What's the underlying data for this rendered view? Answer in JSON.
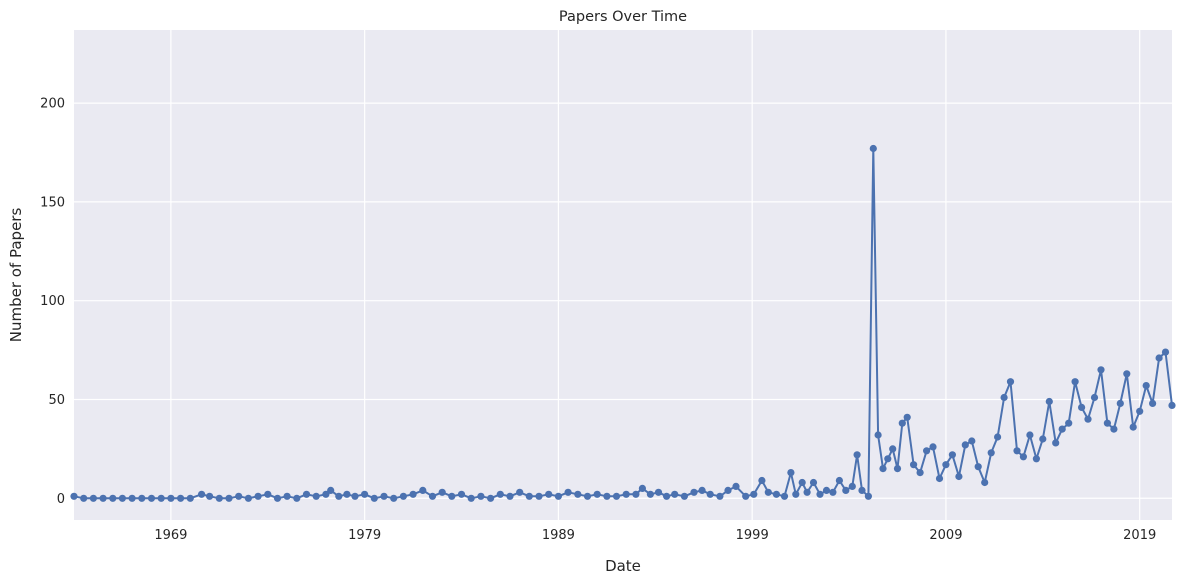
{
  "chart_data": {
    "type": "line",
    "title": "Papers Over Time",
    "xlabel": "Date",
    "ylabel": "Number of Papers",
    "xlim": [
      "1964-01",
      "2020-09"
    ],
    "ylim": [
      -11,
      237
    ],
    "x_ticks": [
      "1969",
      "1979",
      "1989",
      "1999",
      "2009",
      "2019"
    ],
    "y_ticks": [
      0,
      50,
      100,
      150,
      200
    ],
    "grid": true,
    "legend": "none",
    "colors": {
      "series": "#4c72b0",
      "plot_background": "#eaeaf2",
      "grid": "#ffffff",
      "text": "#262626"
    },
    "series": [
      {
        "points": [
          [
            "1964-01",
            1
          ],
          [
            "1964-07",
            0
          ],
          [
            "1965-01",
            0
          ],
          [
            "1965-07",
            0
          ],
          [
            "1966-01",
            0
          ],
          [
            "1966-07",
            0
          ],
          [
            "1967-01",
            0
          ],
          [
            "1967-07",
            0
          ],
          [
            "1968-01",
            0
          ],
          [
            "1968-07",
            0
          ],
          [
            "1969-01",
            0
          ],
          [
            "1969-07",
            0
          ],
          [
            "1970-01",
            0
          ],
          [
            "1970-08",
            2
          ],
          [
            "1971-01",
            1
          ],
          [
            "1971-07",
            0
          ],
          [
            "1972-01",
            0
          ],
          [
            "1972-07",
            1
          ],
          [
            "1973-01",
            0
          ],
          [
            "1973-07",
            1
          ],
          [
            "1974-01",
            2
          ],
          [
            "1974-07",
            0
          ],
          [
            "1975-01",
            1
          ],
          [
            "1975-07",
            0
          ],
          [
            "1976-01",
            2
          ],
          [
            "1976-07",
            1
          ],
          [
            "1977-01",
            2
          ],
          [
            "1977-04",
            4
          ],
          [
            "1977-09",
            1
          ],
          [
            "1978-02",
            2
          ],
          [
            "1978-07",
            1
          ],
          [
            "1979-01",
            2
          ],
          [
            "1979-07",
            0
          ],
          [
            "1980-01",
            1
          ],
          [
            "1980-07",
            0
          ],
          [
            "1981-01",
            1
          ],
          [
            "1981-07",
            2
          ],
          [
            "1982-01",
            4
          ],
          [
            "1982-07",
            1
          ],
          [
            "1983-01",
            3
          ],
          [
            "1983-07",
            1
          ],
          [
            "1984-01",
            2
          ],
          [
            "1984-07",
            0
          ],
          [
            "1985-01",
            1
          ],
          [
            "1985-07",
            0
          ],
          [
            "1986-01",
            2
          ],
          [
            "1986-07",
            1
          ],
          [
            "1987-01",
            3
          ],
          [
            "1987-07",
            1
          ],
          [
            "1988-01",
            1
          ],
          [
            "1988-07",
            2
          ],
          [
            "1989-01",
            1
          ],
          [
            "1989-07",
            3
          ],
          [
            "1990-01",
            2
          ],
          [
            "1990-07",
            1
          ],
          [
            "1991-01",
            2
          ],
          [
            "1991-07",
            1
          ],
          [
            "1992-01",
            1
          ],
          [
            "1992-07",
            2
          ],
          [
            "1993-01",
            2
          ],
          [
            "1993-05",
            5
          ],
          [
            "1993-10",
            2
          ],
          [
            "1994-03",
            3
          ],
          [
            "1994-08",
            1
          ],
          [
            "1995-01",
            2
          ],
          [
            "1995-07",
            1
          ],
          [
            "1996-01",
            3
          ],
          [
            "1996-06",
            4
          ],
          [
            "1996-11",
            2
          ],
          [
            "1997-05",
            1
          ],
          [
            "1997-10",
            4
          ],
          [
            "1998-03",
            6
          ],
          [
            "1998-09",
            1
          ],
          [
            "1999-02",
            2
          ],
          [
            "1999-07",
            9
          ],
          [
            "1999-11",
            3
          ],
          [
            "2000-04",
            2
          ],
          [
            "2000-09",
            1
          ],
          [
            "2001-01",
            13
          ],
          [
            "2001-04",
            2
          ],
          [
            "2001-08",
            8
          ],
          [
            "2001-11",
            3
          ],
          [
            "2002-03",
            8
          ],
          [
            "2002-07",
            2
          ],
          [
            "2002-11",
            4
          ],
          [
            "2003-03",
            3
          ],
          [
            "2003-07",
            9
          ],
          [
            "2003-11",
            4
          ],
          [
            "2004-03",
            6
          ],
          [
            "2004-06",
            22
          ],
          [
            "2004-09",
            4
          ],
          [
            "2005-01",
            1
          ],
          [
            "2005-04",
            177
          ],
          [
            "2005-07",
            32
          ],
          [
            "2005-10",
            15
          ],
          [
            "2006-01",
            20
          ],
          [
            "2006-04",
            25
          ],
          [
            "2006-07",
            15
          ],
          [
            "2006-10",
            38
          ],
          [
            "2007-01",
            41
          ],
          [
            "2007-05",
            17
          ],
          [
            "2007-09",
            13
          ],
          [
            "2008-01",
            24
          ],
          [
            "2008-05",
            26
          ],
          [
            "2008-09",
            10
          ],
          [
            "2009-01",
            17
          ],
          [
            "2009-05",
            22
          ],
          [
            "2009-09",
            11
          ],
          [
            "2010-01",
            27
          ],
          [
            "2010-05",
            29
          ],
          [
            "2010-09",
            16
          ],
          [
            "2011-01",
            8
          ],
          [
            "2011-05",
            23
          ],
          [
            "2011-09",
            31
          ],
          [
            "2012-01",
            51
          ],
          [
            "2012-05",
            59
          ],
          [
            "2012-09",
            24
          ],
          [
            "2013-01",
            21
          ],
          [
            "2013-05",
            32
          ],
          [
            "2013-09",
            20
          ],
          [
            "2014-01",
            30
          ],
          [
            "2014-05",
            49
          ],
          [
            "2014-09",
            28
          ],
          [
            "2015-01",
            35
          ],
          [
            "2015-05",
            38
          ],
          [
            "2015-09",
            59
          ],
          [
            "2016-01",
            46
          ],
          [
            "2016-05",
            40
          ],
          [
            "2016-09",
            51
          ],
          [
            "2017-01",
            65
          ],
          [
            "2017-05",
            38
          ],
          [
            "2017-09",
            35
          ],
          [
            "2018-01",
            48
          ],
          [
            "2018-05",
            63
          ],
          [
            "2018-09",
            36
          ],
          [
            "2019-01",
            44
          ],
          [
            "2019-05",
            57
          ],
          [
            "2019-09",
            48
          ],
          [
            "2020-01",
            71
          ],
          [
            "2020-05",
            74
          ],
          [
            "2020-09",
            47
          ]
        ]
      }
    ]
  }
}
